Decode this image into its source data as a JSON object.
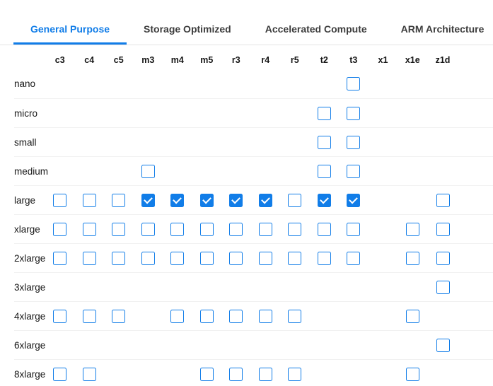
{
  "colors": {
    "accent": "#117de8",
    "checked_fill": "#0d80e6",
    "inactive_tab": "#3d3d3d",
    "label_text": "#161616",
    "separator": "#f1f1f1",
    "tab_border": "#e3e3e3"
  },
  "tabs": [
    {
      "label": "General Purpose",
      "active": true
    },
    {
      "label": "Storage Optimized",
      "active": false
    },
    {
      "label": "Accelerated Compute",
      "active": false
    },
    {
      "label": "ARM Architecture",
      "active": false
    }
  ],
  "matrix": {
    "columns": [
      "c3",
      "c4",
      "c5",
      "m3",
      "m4",
      "m5",
      "r3",
      "r4",
      "r5",
      "t2",
      "t3",
      "x1",
      "x1e",
      "z1d"
    ],
    "rows": [
      {
        "label": "nano",
        "cells": [
          "none",
          "none",
          "none",
          "none",
          "none",
          "none",
          "none",
          "none",
          "none",
          "none",
          "unchecked",
          "none",
          "none",
          "none"
        ]
      },
      {
        "label": "micro",
        "cells": [
          "none",
          "none",
          "none",
          "none",
          "none",
          "none",
          "none",
          "none",
          "none",
          "unchecked",
          "unchecked",
          "none",
          "none",
          "none"
        ]
      },
      {
        "label": "small",
        "cells": [
          "none",
          "none",
          "none",
          "none",
          "none",
          "none",
          "none",
          "none",
          "none",
          "unchecked",
          "unchecked",
          "none",
          "none",
          "none"
        ]
      },
      {
        "label": "medium",
        "cells": [
          "none",
          "none",
          "none",
          "unchecked",
          "none",
          "none",
          "none",
          "none",
          "none",
          "unchecked",
          "unchecked",
          "none",
          "none",
          "none"
        ]
      },
      {
        "label": "large",
        "cells": [
          "unchecked",
          "unchecked",
          "unchecked",
          "checked",
          "checked",
          "checked",
          "checked",
          "checked",
          "unchecked",
          "checked",
          "checked",
          "none",
          "none",
          "unchecked"
        ]
      },
      {
        "label": "xlarge",
        "cells": [
          "unchecked",
          "unchecked",
          "unchecked",
          "unchecked",
          "unchecked",
          "unchecked",
          "unchecked",
          "unchecked",
          "unchecked",
          "unchecked",
          "unchecked",
          "none",
          "unchecked",
          "unchecked"
        ]
      },
      {
        "label": "2xlarge",
        "cells": [
          "unchecked",
          "unchecked",
          "unchecked",
          "unchecked",
          "unchecked",
          "unchecked",
          "unchecked",
          "unchecked",
          "unchecked",
          "unchecked",
          "unchecked",
          "none",
          "unchecked",
          "unchecked"
        ]
      },
      {
        "label": "3xlarge",
        "cells": [
          "none",
          "none",
          "none",
          "none",
          "none",
          "none",
          "none",
          "none",
          "none",
          "none",
          "none",
          "none",
          "none",
          "unchecked"
        ]
      },
      {
        "label": "4xlarge",
        "cells": [
          "unchecked",
          "unchecked",
          "unchecked",
          "none",
          "unchecked",
          "unchecked",
          "unchecked",
          "unchecked",
          "unchecked",
          "none",
          "none",
          "none",
          "unchecked",
          "none"
        ]
      },
      {
        "label": "6xlarge",
        "cells": [
          "none",
          "none",
          "none",
          "none",
          "none",
          "none",
          "none",
          "none",
          "none",
          "none",
          "none",
          "none",
          "none",
          "unchecked"
        ]
      },
      {
        "label": "8xlarge",
        "cells": [
          "unchecked",
          "unchecked",
          "none",
          "none",
          "none",
          "unchecked",
          "unchecked",
          "unchecked",
          "unchecked",
          "none",
          "none",
          "none",
          "unchecked",
          "none"
        ]
      }
    ]
  }
}
